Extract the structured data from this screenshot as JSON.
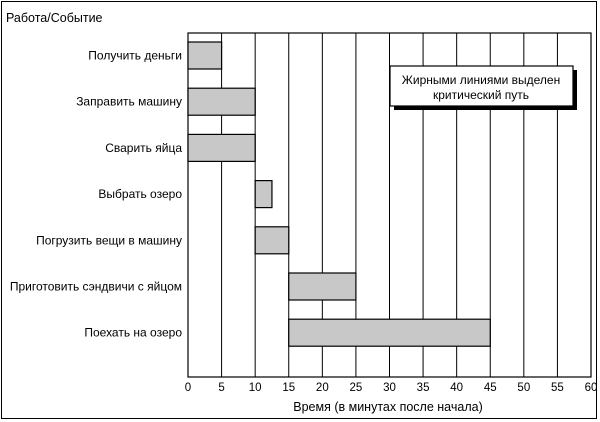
{
  "chart_data": {
    "type": "bar",
    "subtype": "gantt",
    "yheader": "Работа/Событие",
    "xlabel": "Время (в минутах после начала)",
    "xlim": [
      0,
      60
    ],
    "xticks": [
      0,
      5,
      10,
      15,
      20,
      25,
      30,
      35,
      40,
      45,
      50,
      55,
      60
    ],
    "grid": "vertical",
    "bar_color": "#c8c8c8",
    "tasks": [
      {
        "label": "Получить деньги",
        "start": 0,
        "end": 5
      },
      {
        "label": "Заправить машину",
        "start": 0,
        "end": 10
      },
      {
        "label": "Сварить яйца",
        "start": 0,
        "end": 10
      },
      {
        "label": "Выбрать озеро",
        "start": 10,
        "end": 12.5
      },
      {
        "label": "Погрузить вещи в машину",
        "start": 10,
        "end": 15
      },
      {
        "label": "Приготовить сэндвичи с яйцом",
        "start": 15,
        "end": 25
      },
      {
        "label": "Поехать на озеро",
        "start": 15,
        "end": 45
      }
    ],
    "annotation": {
      "lines": [
        "Жирными линиями выделен",
        "критический путь"
      ],
      "placement": "top-right"
    }
  }
}
